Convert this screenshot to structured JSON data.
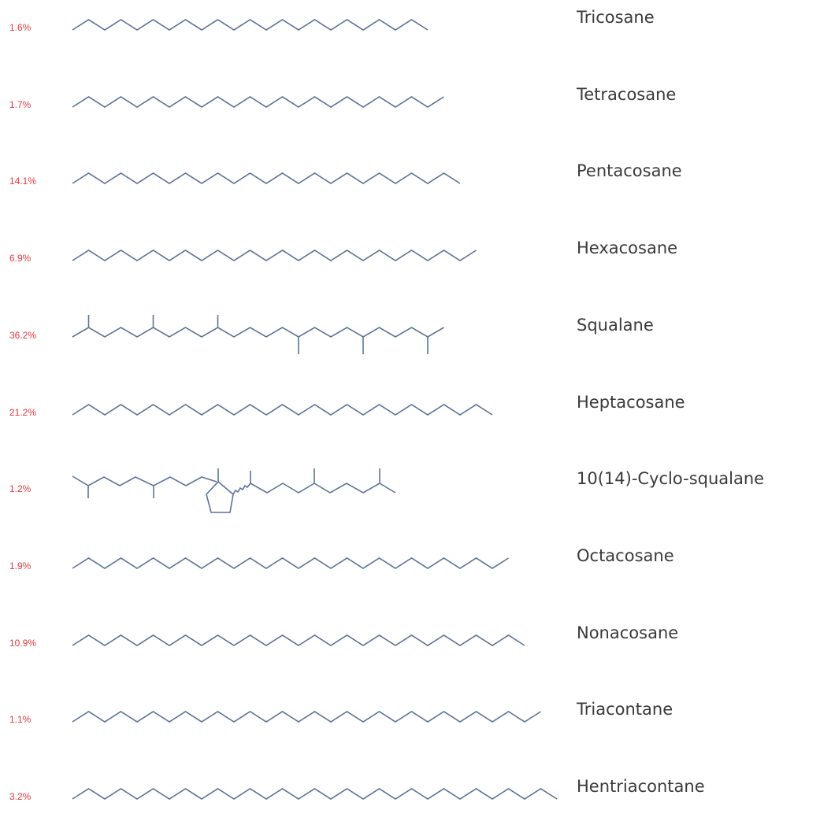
{
  "colors": {
    "percent": "#e8383d",
    "bond": "#5c7396",
    "name": "#3a3a3a"
  },
  "compounds": [
    {
      "name": "Tricosane",
      "percent": "1.6%",
      "carbons": 23,
      "kind": "linear"
    },
    {
      "name": "Tetracosane",
      "percent": "1.7%",
      "carbons": 24,
      "kind": "linear"
    },
    {
      "name": "Pentacosane",
      "percent": "14.1%",
      "carbons": 25,
      "kind": "linear"
    },
    {
      "name": "Hexacosane",
      "percent": "6.9%",
      "carbons": 26,
      "kind": "linear"
    },
    {
      "name": "Squalane",
      "percent": "36.2%",
      "carbons": 30,
      "kind": "squalane"
    },
    {
      "name": "Heptacosane",
      "percent": "21.2%",
      "carbons": 27,
      "kind": "linear"
    },
    {
      "name": "10(14)-Cyclo-squalane",
      "percent": "1.2%",
      "carbons": 30,
      "kind": "cyclosqualane"
    },
    {
      "name": "Octacosane",
      "percent": "1.9%",
      "carbons": 28,
      "kind": "linear"
    },
    {
      "name": "Nonacosane",
      "percent": "10.9%",
      "carbons": 29,
      "kind": "linear"
    },
    {
      "name": "Triacontane",
      "percent": "1.1%",
      "carbons": 30,
      "kind": "linear"
    },
    {
      "name": "Hentriacontane",
      "percent": "3.2%",
      "carbons": 31,
      "kind": "linear"
    }
  ]
}
